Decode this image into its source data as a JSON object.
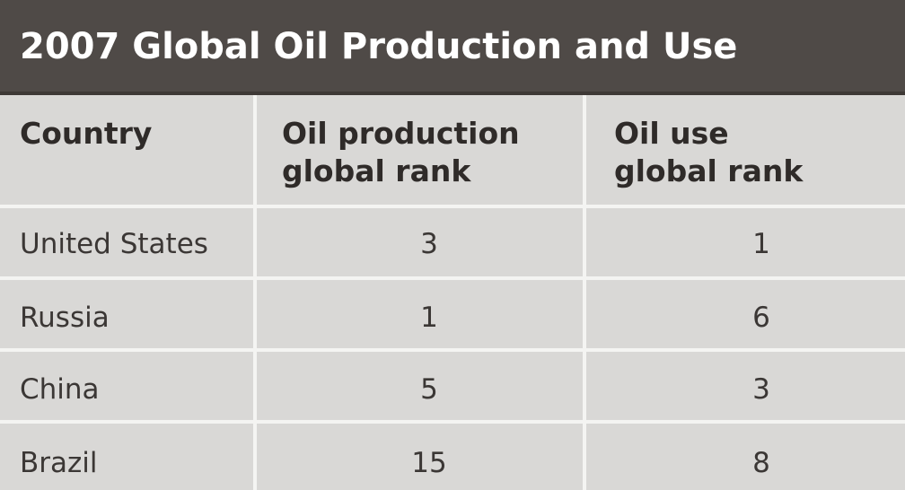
{
  "chart_data": {
    "type": "table",
    "title": "2007 Global Oil Production and Use",
    "columns": [
      {
        "label_lines": [
          "Country"
        ]
      },
      {
        "label_lines": [
          "Oil production",
          "global rank"
        ]
      },
      {
        "label_lines": [
          "Oil use",
          "global rank"
        ]
      }
    ],
    "rows": [
      {
        "country": "United States",
        "production_rank": "3",
        "use_rank": "1"
      },
      {
        "country": "Russia",
        "production_rank": "1",
        "use_rank": "6"
      },
      {
        "country": "China",
        "production_rank": "5",
        "use_rank": "3"
      },
      {
        "country": "Brazil",
        "production_rank": "15",
        "use_rank": "8"
      }
    ]
  }
}
